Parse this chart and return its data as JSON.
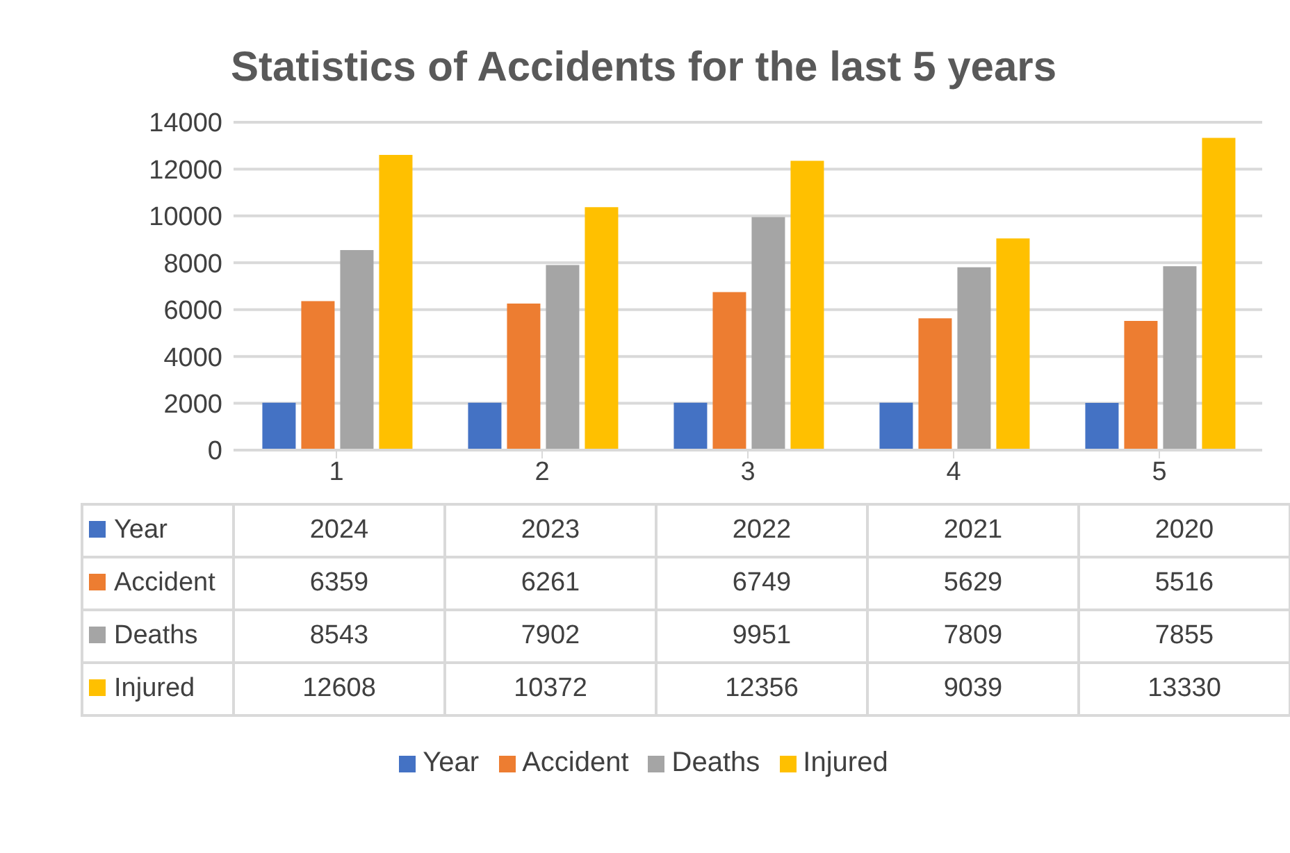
{
  "chart_data": {
    "type": "bar",
    "title": "Statistics of Accidents for the last 5 years",
    "categories": [
      "1",
      "2",
      "3",
      "4",
      "5"
    ],
    "series": [
      {
        "name": "Year",
        "color": "#4472c4",
        "values": [
          2024,
          2023,
          2022,
          2021,
          2020
        ]
      },
      {
        "name": "Accident",
        "color": "#ed7d31",
        "values": [
          6359,
          6261,
          6749,
          5629,
          5516
        ]
      },
      {
        "name": "Deaths",
        "color": "#a5a5a5",
        "values": [
          8543,
          7902,
          9951,
          7809,
          7855
        ]
      },
      {
        "name": "Injured",
        "color": "#ffc000",
        "values": [
          12608,
          10372,
          12356,
          9039,
          13330
        ]
      }
    ],
    "ylim": [
      0,
      14000
    ],
    "yticks": [
      0,
      2000,
      4000,
      6000,
      8000,
      10000,
      12000,
      14000
    ],
    "grid": "y",
    "legend": "bottom",
    "data_labels": true
  }
}
